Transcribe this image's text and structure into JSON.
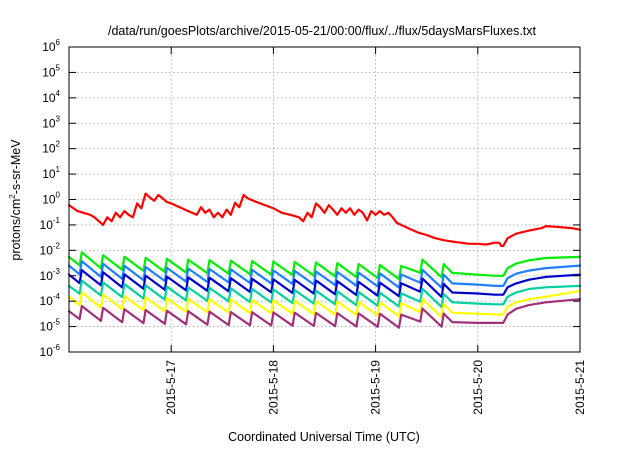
{
  "chart_data": {
    "type": "line",
    "title": "/data/run/goesPlots/archive/2015-05-21/00:00/flux/../flux/5daysMarsFluxes.txt",
    "xlabel": "Coordinated Universal Time (UTC)",
    "ylabel": "protons/cm²-s-sr-MeV",
    "ylabel_parts": [
      "protons/cm",
      "2",
      "-s-sr-MeV"
    ],
    "ylog": true,
    "ylim": [
      1e-06,
      1000000.0
    ],
    "xlim": [
      "2015-05-16T00:00",
      "2015-05-21T00:00"
    ],
    "grid": true,
    "legend": "none",
    "x_ticks": [
      {
        "x": "2015-05-17T00:00",
        "label": "2015-5-17"
      },
      {
        "x": "2015-05-18T00:00",
        "label": "2015-5-18"
      },
      {
        "x": "2015-05-19T00:00",
        "label": "2015-5-19"
      },
      {
        "x": "2015-05-20T00:00",
        "label": "2015-5-20"
      },
      {
        "x": "2015-05-21T00:00",
        "label": "2015-5-21"
      }
    ],
    "y_ticks": [
      {
        "exp": "-6"
      },
      {
        "exp": "-5"
      },
      {
        "exp": "-4"
      },
      {
        "exp": "-3"
      },
      {
        "exp": "-2"
      },
      {
        "exp": "-1"
      },
      {
        "exp": "0"
      },
      {
        "exp": "1"
      },
      {
        "exp": "2"
      },
      {
        "exp": "3"
      },
      {
        "exp": "4"
      },
      {
        "exp": "5"
      },
      {
        "exp": "6"
      }
    ],
    "y_tick_base": "10",
    "pulses": {
      "first": "2015-05-16T02:30",
      "interval_hours": 5,
      "count": 18,
      "rise_over_decay": 1.8
    },
    "series": [
      {
        "color": "#ff0000",
        "points": [
          [
            "2015-05-16T00:00",
            0.6
          ],
          [
            "2015-05-16T02:00",
            0.35
          ],
          [
            "2015-05-16T05:00",
            0.25
          ],
          [
            "2015-05-16T06:00",
            0.2
          ],
          [
            "2015-05-16T07:00",
            0.14
          ],
          [
            "2015-05-16T08:00",
            0.1
          ],
          [
            "2015-05-16T09:00",
            0.2
          ],
          [
            "2015-05-16T10:00",
            0.14
          ],
          [
            "2015-05-16T11:00",
            0.3
          ],
          [
            "2015-05-16T12:00",
            0.2
          ],
          [
            "2015-05-16T13:00",
            0.35
          ],
          [
            "2015-05-16T14:00",
            0.25
          ],
          [
            "2015-05-16T15:00",
            0.2
          ],
          [
            "2015-05-16T16:00",
            0.7
          ],
          [
            "2015-05-16T17:00",
            0.45
          ],
          [
            "2015-05-16T18:00",
            1.7
          ],
          [
            "2015-05-16T19:00",
            1.2
          ],
          [
            "2015-05-16T20:00",
            0.9
          ],
          [
            "2015-05-16T21:00",
            1.5
          ],
          [
            "2015-05-16T22:00",
            1.1
          ],
          [
            "2015-05-16T23:00",
            0.8
          ],
          [
            "2015-05-17T00:00",
            0.7
          ],
          [
            "2015-05-17T02:00",
            0.5
          ],
          [
            "2015-05-17T04:00",
            0.35
          ],
          [
            "2015-05-17T06:00",
            0.25
          ],
          [
            "2015-05-17T07:00",
            0.5
          ],
          [
            "2015-05-17T08:00",
            0.3
          ],
          [
            "2015-05-17T09:00",
            0.4
          ],
          [
            "2015-05-17T10:00",
            0.2
          ],
          [
            "2015-05-17T11:00",
            0.3
          ],
          [
            "2015-05-17T12:00",
            0.2
          ],
          [
            "2015-05-17T13:00",
            0.4
          ],
          [
            "2015-05-17T14:00",
            0.25
          ],
          [
            "2015-05-17T15:00",
            0.75
          ],
          [
            "2015-05-17T16:00",
            0.5
          ],
          [
            "2015-05-17T17:00",
            1.5
          ],
          [
            "2015-05-17T18:00",
            1.1
          ],
          [
            "2015-05-17T20:00",
            0.8
          ],
          [
            "2015-05-17T22:00",
            0.6
          ],
          [
            "2015-05-18T00:00",
            0.45
          ],
          [
            "2015-05-18T02:00",
            0.3
          ],
          [
            "2015-05-18T04:00",
            0.25
          ],
          [
            "2015-05-18T06:00",
            0.2
          ],
          [
            "2015-05-18T07:00",
            0.14
          ],
          [
            "2015-05-18T08:00",
            0.3
          ],
          [
            "2015-05-18T09:00",
            0.2
          ],
          [
            "2015-05-18T10:00",
            0.7
          ],
          [
            "2015-05-18T11:00",
            0.5
          ],
          [
            "2015-05-18T12:00",
            0.3
          ],
          [
            "2015-05-18T13:00",
            0.6
          ],
          [
            "2015-05-18T14:00",
            0.4
          ],
          [
            "2015-05-18T15:00",
            0.25
          ],
          [
            "2015-05-18T16:00",
            0.45
          ],
          [
            "2015-05-18T17:00",
            0.3
          ],
          [
            "2015-05-18T18:00",
            0.45
          ],
          [
            "2015-05-18T19:00",
            0.25
          ],
          [
            "2015-05-18T20:00",
            0.4
          ],
          [
            "2015-05-18T21:00",
            0.3
          ],
          [
            "2015-05-18T22:00",
            0.15
          ],
          [
            "2015-05-18T23:00",
            0.35
          ],
          [
            "2015-05-19T00:00",
            0.25
          ],
          [
            "2015-05-19T01:00",
            0.35
          ],
          [
            "2015-05-19T02:00",
            0.25
          ],
          [
            "2015-05-19T03:00",
            0.3
          ],
          [
            "2015-05-19T04:00",
            0.2
          ],
          [
            "2015-05-19T05:00",
            0.12
          ],
          [
            "2015-05-19T06:00",
            0.1
          ],
          [
            "2015-05-19T08:00",
            0.07
          ],
          [
            "2015-05-19T10:00",
            0.05
          ],
          [
            "2015-05-19T12:00",
            0.04
          ],
          [
            "2015-05-19T14:00",
            0.03
          ],
          [
            "2015-05-19T16:00",
            0.025
          ],
          [
            "2015-05-19T18:00",
            0.022
          ],
          [
            "2015-05-19T20:00",
            0.02
          ],
          [
            "2015-05-19T22:00",
            0.018
          ],
          [
            "2015-05-20T00:00",
            0.018
          ],
          [
            "2015-05-20T02:00",
            0.017
          ],
          [
            "2015-05-20T04:00",
            0.02
          ],
          [
            "2015-05-20T05:00",
            0.02
          ],
          [
            "2015-05-20T05:30",
            0.015
          ],
          [
            "2015-05-20T06:00",
            0.015
          ],
          [
            "2015-05-20T07:00",
            0.03
          ],
          [
            "2015-05-20T09:00",
            0.045
          ],
          [
            "2015-05-20T12:00",
            0.06
          ],
          [
            "2015-05-20T15:00",
            0.075
          ],
          [
            "2015-05-20T16:00",
            0.09
          ],
          [
            "2015-05-20T18:00",
            0.085
          ],
          [
            "2015-05-20T20:00",
            0.08
          ],
          [
            "2015-05-20T22:00",
            0.075
          ],
          [
            "2015-05-21T00:00",
            0.065
          ]
        ]
      },
      {
        "color": "#00ee00",
        "points": [
          [
            "2015-05-16T00:00",
            0.0055
          ],
          [
            "2015-05-16T03:00",
            0.0045
          ],
          [
            "2015-05-16T08:00",
            0.0035
          ],
          [
            "2015-05-16T14:00",
            0.003
          ],
          [
            "2015-05-17T00:00",
            0.0025
          ],
          [
            "2015-05-17T12:00",
            0.0022
          ],
          [
            "2015-05-18T00:00",
            0.002
          ],
          [
            "2015-05-18T12:00",
            0.0018
          ],
          [
            "2015-05-19T00:00",
            0.0015
          ],
          [
            "2015-05-19T07:00",
            0.0013
          ],
          [
            "2015-05-19T10:00",
            0.0025
          ],
          [
            "2015-05-19T14:00",
            0.0018
          ],
          [
            "2015-05-19T18:00",
            0.0013
          ],
          [
            "2015-05-20T00:00",
            0.0011
          ],
          [
            "2015-05-20T04:00",
            0.001
          ],
          [
            "2015-05-20T06:00",
            0.001
          ],
          [
            "2015-05-20T07:00",
            0.002
          ],
          [
            "2015-05-20T09:00",
            0.003
          ],
          [
            "2015-05-20T12:00",
            0.004
          ],
          [
            "2015-05-20T16:00",
            0.005
          ],
          [
            "2015-05-21T00:00",
            0.0055
          ]
        ]
      },
      {
        "color": "#1e7fff",
        "points": [
          [
            "2015-05-16T00:00",
            0.0025
          ],
          [
            "2015-05-16T03:00",
            0.002
          ],
          [
            "2015-05-16T08:00",
            0.0016
          ],
          [
            "2015-05-16T14:00",
            0.0013
          ],
          [
            "2015-05-17T00:00",
            0.0011
          ],
          [
            "2015-05-17T12:00",
            0.001
          ],
          [
            "2015-05-18T00:00",
            0.0009
          ],
          [
            "2015-05-18T12:00",
            0.0008
          ],
          [
            "2015-05-19T00:00",
            0.0007
          ],
          [
            "2015-05-19T07:00",
            0.0006
          ],
          [
            "2015-05-19T10:00",
            0.001
          ],
          [
            "2015-05-19T14:00",
            0.0007
          ],
          [
            "2015-05-19T18:00",
            0.0005
          ],
          [
            "2015-05-20T00:00",
            0.00045
          ],
          [
            "2015-05-20T04:00",
            0.0004
          ],
          [
            "2015-05-20T06:00",
            0.0004
          ],
          [
            "2015-05-20T07:00",
            0.0008
          ],
          [
            "2015-05-20T09:00",
            0.0012
          ],
          [
            "2015-05-20T12:00",
            0.0016
          ],
          [
            "2015-05-20T16:00",
            0.002
          ],
          [
            "2015-05-21T00:00",
            0.0025
          ]
        ]
      },
      {
        "color": "#0000cc",
        "points": [
          [
            "2015-05-16T00:00",
            0.0011
          ],
          [
            "2015-05-16T03:00",
            0.0009
          ],
          [
            "2015-05-16T08:00",
            0.00075
          ],
          [
            "2015-05-16T14:00",
            0.0006
          ],
          [
            "2015-05-17T00:00",
            0.0005
          ],
          [
            "2015-05-17T12:00",
            0.00045
          ],
          [
            "2015-05-18T00:00",
            0.0004
          ],
          [
            "2015-05-18T12:00",
            0.00035
          ],
          [
            "2015-05-19T00:00",
            0.0003
          ],
          [
            "2015-05-19T07:00",
            0.00028
          ],
          [
            "2015-05-19T10:00",
            0.00045
          ],
          [
            "2015-05-19T14:00",
            0.0003
          ],
          [
            "2015-05-19T18:00",
            0.00022
          ],
          [
            "2015-05-20T00:00",
            0.0002
          ],
          [
            "2015-05-20T04:00",
            0.00018
          ],
          [
            "2015-05-20T06:00",
            0.00018
          ],
          [
            "2015-05-20T07:00",
            0.00035
          ],
          [
            "2015-05-20T09:00",
            0.0005
          ],
          [
            "2015-05-20T12:00",
            0.0007
          ],
          [
            "2015-05-20T16:00",
            0.0009
          ],
          [
            "2015-05-21T00:00",
            0.0011
          ]
        ]
      },
      {
        "color": "#00d0a0",
        "points": [
          [
            "2015-05-16T00:00",
            0.0004
          ],
          [
            "2015-05-16T03:00",
            0.00035
          ],
          [
            "2015-05-16T08:00",
            0.0003
          ],
          [
            "2015-05-16T14:00",
            0.00025
          ],
          [
            "2015-05-17T00:00",
            0.0002
          ],
          [
            "2015-05-17T12:00",
            0.00018
          ],
          [
            "2015-05-18T00:00",
            0.00016
          ],
          [
            "2015-05-18T12:00",
            0.00014
          ],
          [
            "2015-05-19T00:00",
            0.00012
          ],
          [
            "2015-05-19T07:00",
            0.00011
          ],
          [
            "2015-05-19T10:00",
            0.00018
          ],
          [
            "2015-05-19T14:00",
            0.00012
          ],
          [
            "2015-05-19T18:00",
            9e-05
          ],
          [
            "2015-05-20T00:00",
            8e-05
          ],
          [
            "2015-05-20T04:00",
            7.5e-05
          ],
          [
            "2015-05-20T06:00",
            7.5e-05
          ],
          [
            "2015-05-20T07:00",
            0.00015
          ],
          [
            "2015-05-20T09:00",
            0.00022
          ],
          [
            "2015-05-20T12:00",
            0.0003
          ],
          [
            "2015-05-20T16:00",
            0.00035
          ],
          [
            "2015-05-21T00:00",
            0.0004
          ]
        ]
      },
      {
        "color": "#ffff00",
        "points": [
          [
            "2015-05-16T00:00",
            0.00015
          ],
          [
            "2015-05-16T03:00",
            0.00012
          ],
          [
            "2015-05-16T08:00",
            0.0001
          ],
          [
            "2015-05-16T14:00",
            8.5e-05
          ],
          [
            "2015-05-17T00:00",
            7e-05
          ],
          [
            "2015-05-17T12:00",
            6.5e-05
          ],
          [
            "2015-05-18T00:00",
            6e-05
          ],
          [
            "2015-05-18T12:00",
            5.5e-05
          ],
          [
            "2015-05-19T00:00",
            5e-05
          ],
          [
            "2015-05-19T07:00",
            4.5e-05
          ],
          [
            "2015-05-19T10:00",
            7e-05
          ],
          [
            "2015-05-19T14:00",
            5e-05
          ],
          [
            "2015-05-19T18:00",
            3.5e-05
          ],
          [
            "2015-05-20T00:00",
            3.2e-05
          ],
          [
            "2015-05-20T04:00",
            3e-05
          ],
          [
            "2015-05-20T06:00",
            3e-05
          ],
          [
            "2015-05-20T07:00",
            6e-05
          ],
          [
            "2015-05-20T09:00",
            9e-05
          ],
          [
            "2015-05-20T12:00",
            0.00012
          ],
          [
            "2015-05-20T16:00",
            0.00015
          ],
          [
            "2015-05-21T00:00",
            0.00025
          ]
        ]
      },
      {
        "color": "#a0307a",
        "points": [
          [
            "2015-05-16T00:00",
            4e-05
          ],
          [
            "2015-05-16T03:00",
            3.5e-05
          ],
          [
            "2015-05-16T08:00",
            3e-05
          ],
          [
            "2015-05-16T14:00",
            2.6e-05
          ],
          [
            "2015-05-17T00:00",
            2.3e-05
          ],
          [
            "2015-05-17T12:00",
            2.1e-05
          ],
          [
            "2015-05-18T00:00",
            2e-05
          ],
          [
            "2015-05-18T12:00",
            1.9e-05
          ],
          [
            "2015-05-19T00:00",
            1.8e-05
          ],
          [
            "2015-05-19T07:00",
            1.6e-05
          ],
          [
            "2015-05-19T10:00",
            3e-05
          ],
          [
            "2015-05-19T14:00",
            2e-05
          ],
          [
            "2015-05-19T18:00",
            1.5e-05
          ],
          [
            "2015-05-20T00:00",
            1.4e-05
          ],
          [
            "2015-05-20T04:00",
            1.4e-05
          ],
          [
            "2015-05-20T06:00",
            1.4e-05
          ],
          [
            "2015-05-20T07:00",
            3e-05
          ],
          [
            "2015-05-20T09:00",
            5e-05
          ],
          [
            "2015-05-20T12:00",
            7e-05
          ],
          [
            "2015-05-20T16:00",
            9e-05
          ],
          [
            "2015-05-21T00:00",
            0.00012
          ]
        ]
      }
    ]
  }
}
